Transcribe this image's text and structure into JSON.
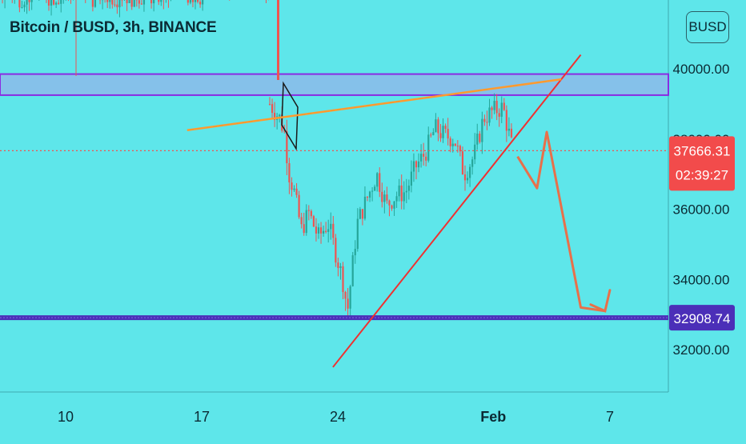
{
  "header": {
    "title": "Bitcoin / BUSD, 3h, BINANCE",
    "currency": "BUSD"
  },
  "price_tags": {
    "last_price": "37666.31",
    "countdown": "02:39:27",
    "support_price": "32908.74"
  },
  "colors": {
    "background": "#5ee6ea",
    "up": "#26a69a",
    "down": "#ef5350",
    "zone_fill": "#8fb8ea",
    "zone_border": "#8a2be2",
    "support": "#4b2fb8",
    "trendline": "#f03030",
    "resistance_line": "#ff9a2e",
    "projection": "#e8704a"
  },
  "chart_data": {
    "type": "candlestick",
    "title": "Bitcoin / BUSD, 3h, BINANCE",
    "y_axis": {
      "range": [
        31000,
        41500
      ],
      "ticks": [
        "32000.00",
        "34000.00",
        "36000.00",
        "38000.00",
        "40000.00"
      ],
      "side": "right"
    },
    "x_axis": {
      "ticks": [
        "10",
        "17",
        "24",
        "Feb",
        "7"
      ],
      "tick_dates": [
        "Jan 10",
        "Jan 17",
        "Jan 24",
        "Feb 1",
        "Feb 7"
      ]
    },
    "grid": false,
    "price_path": [
      [
        "Jan 20 12h",
        39000
      ],
      [
        "Jan 21 00h",
        38600
      ],
      [
        "Jan 21 06h",
        38200
      ],
      [
        "Jan 21 12h",
        37000
      ],
      [
        "Jan 21 18h",
        36500
      ],
      [
        "Jan 22 03h",
        35400
      ],
      [
        "Jan 22 12h",
        35900
      ],
      [
        "Jan 23 00h",
        35200
      ],
      [
        "Jan 23 12h",
        35600
      ],
      [
        "Jan 24 06h",
        34000
      ],
      [
        "Jan 24 12h",
        33100
      ],
      [
        "Jan 25 00h",
        35600
      ],
      [
        "Jan 26 00h",
        37000
      ],
      [
        "Jan 26 12h",
        36100
      ],
      [
        "Jan 27 00h",
        36400
      ],
      [
        "Jan 27 12h",
        36500
      ],
      [
        "Jan 28 00h",
        37200
      ],
      [
        "Jan 28 12h",
        37600
      ],
      [
        "Jan 29 00h",
        38300
      ],
      [
        "Jan 29 12h",
        38100
      ],
      [
        "Jan 30 00h",
        38000
      ],
      [
        "Jan 30 12h",
        37000
      ],
      [
        "Jan 31 00h",
        37500
      ],
      [
        "Jan 31 12h",
        38600
      ],
      [
        "Feb 1 00h",
        38800
      ],
      [
        "Feb 1 12h",
        38900
      ],
      [
        "Feb 2 00h",
        37666.31
      ]
    ],
    "left_history": {
      "from": "Jan 6",
      "to": "Jan 20",
      "approx_range": [
        41000,
        43000
      ]
    },
    "last_price": 37666.31,
    "annotations": {
      "supply_zone": [
        39250,
        39850
      ],
      "support_level": 32908.74,
      "rising_trendline": [
        [
          "Jan 23 18h",
          31500
        ],
        [
          "Feb 5 12h",
          40400
        ]
      ],
      "resistance_line": [
        [
          "Jan 16 06h",
          38250
        ],
        [
          "Feb 4 12h",
          39700
        ]
      ],
      "projection_path": [
        [
          "Feb 2 06h",
          37500
        ],
        [
          "Feb 3 06h",
          36600
        ],
        [
          "Feb 3 18h",
          38200
        ],
        [
          "Feb 5 12h",
          33200
        ],
        [
          "Feb 6 18h",
          33100
        ]
      ]
    }
  }
}
